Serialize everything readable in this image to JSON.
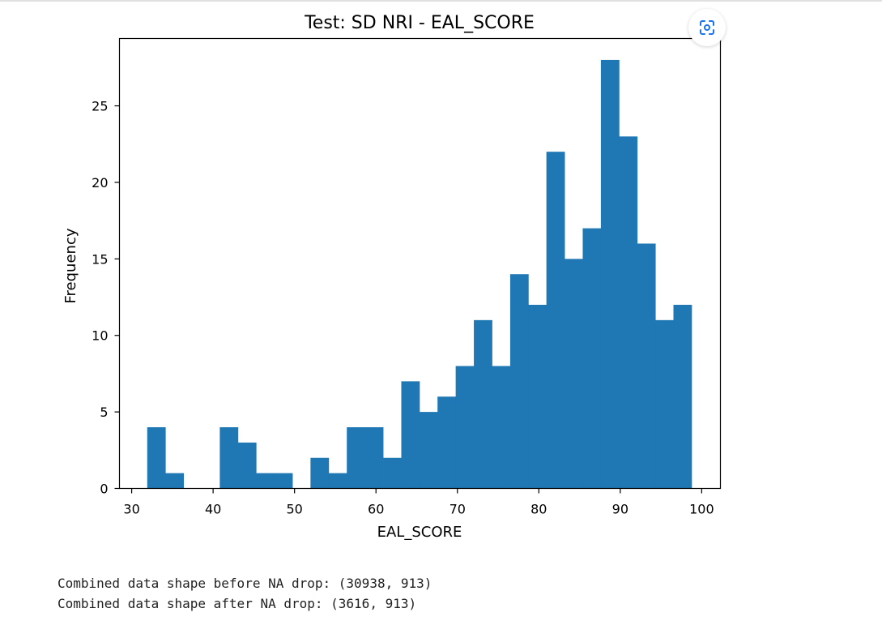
{
  "chart_data": {
    "type": "bar",
    "title": "Test: SD NRI - EAL_SCORE",
    "xlabel": "EAL_SCORE",
    "ylabel": "Frequency",
    "bins": [
      {
        "x0": 31.91,
        "x1": 34.14,
        "count": 4
      },
      {
        "x0": 34.14,
        "x1": 36.37,
        "count": 1
      },
      {
        "x0": 36.37,
        "x1": 38.59,
        "count": 0
      },
      {
        "x0": 38.59,
        "x1": 40.82,
        "count": 0
      },
      {
        "x0": 40.82,
        "x1": 43.05,
        "count": 4
      },
      {
        "x0": 43.05,
        "x1": 45.28,
        "count": 3
      },
      {
        "x0": 45.28,
        "x1": 47.51,
        "count": 1
      },
      {
        "x0": 47.51,
        "x1": 49.74,
        "count": 1
      },
      {
        "x0": 49.74,
        "x1": 51.96,
        "count": 0
      },
      {
        "x0": 51.96,
        "x1": 54.19,
        "count": 2
      },
      {
        "x0": 54.19,
        "x1": 56.42,
        "count": 1
      },
      {
        "x0": 56.42,
        "x1": 58.65,
        "count": 4
      },
      {
        "x0": 58.65,
        "x1": 60.88,
        "count": 4
      },
      {
        "x0": 60.88,
        "x1": 63.11,
        "count": 2
      },
      {
        "x0": 63.11,
        "x1": 65.34,
        "count": 7
      },
      {
        "x0": 65.34,
        "x1": 67.56,
        "count": 5
      },
      {
        "x0": 67.56,
        "x1": 69.79,
        "count": 6
      },
      {
        "x0": 69.79,
        "x1": 72.02,
        "count": 8
      },
      {
        "x0": 72.02,
        "x1": 74.25,
        "count": 11
      },
      {
        "x0": 74.25,
        "x1": 76.48,
        "count": 8
      },
      {
        "x0": 76.48,
        "x1": 78.71,
        "count": 14
      },
      {
        "x0": 78.71,
        "x1": 80.93,
        "count": 12
      },
      {
        "x0": 80.93,
        "x1": 83.16,
        "count": 22
      },
      {
        "x0": 83.16,
        "x1": 85.39,
        "count": 15
      },
      {
        "x0": 85.39,
        "x1": 87.62,
        "count": 17
      },
      {
        "x0": 87.62,
        "x1": 89.85,
        "count": 28
      },
      {
        "x0": 89.85,
        "x1": 92.08,
        "count": 23
      },
      {
        "x0": 92.08,
        "x1": 94.31,
        "count": 16
      },
      {
        "x0": 94.31,
        "x1": 96.53,
        "count": 11
      },
      {
        "x0": 96.53,
        "x1": 98.76,
        "count": 12
      }
    ],
    "xlim": [
      28.5,
      102.3
    ],
    "ylim": [
      0,
      29.4
    ],
    "xticks": [
      30,
      40,
      50,
      60,
      70,
      80,
      90,
      100
    ],
    "yticks": [
      0,
      5,
      10,
      15,
      20,
      25
    ],
    "grid": false,
    "bar_color": "#1f77b4"
  },
  "output": {
    "lines": [
      "Combined data shape before NA drop: (30938, 913)",
      "Combined data shape after NA drop: (3616, 913)"
    ]
  },
  "toolbar": {
    "lens_icon": "google-lens-icon",
    "lens_color": "#1a73e8"
  }
}
